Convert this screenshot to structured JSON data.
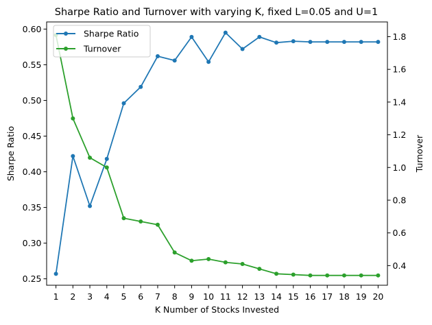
{
  "chart_data": {
    "type": "line",
    "title": "Sharpe Ratio and Turnover with varying K, fixed L=0.05 and U=1",
    "xlabel": "K Number of Stocks Invested",
    "ylabel": "Sharpe Ratio",
    "y2label": "Turnover",
    "x": [
      1,
      2,
      3,
      4,
      5,
      6,
      7,
      8,
      9,
      10,
      11,
      12,
      13,
      14,
      15,
      16,
      17,
      18,
      19,
      20
    ],
    "xlim": [
      0.45,
      20.55
    ],
    "ylim": [
      0.241,
      0.61
    ],
    "y2lim": [
      0.28,
      1.89
    ],
    "yticks": [
      "0.25",
      "0.30",
      "0.35",
      "0.40",
      "0.45",
      "0.50",
      "0.55",
      "0.60"
    ],
    "y2ticks": [
      "0.4",
      "0.6",
      "0.8",
      "1.0",
      "1.2",
      "1.4",
      "1.6",
      "1.8"
    ],
    "grid": false,
    "legend_position": "top-left",
    "series": [
      {
        "name": "Sharpe Ratio",
        "axis": "left",
        "color": "#1f77b4",
        "values": [
          0.257,
          0.422,
          0.352,
          0.418,
          0.496,
          0.519,
          0.562,
          0.556,
          0.589,
          0.554,
          0.595,
          0.572,
          0.589,
          0.581,
          0.583,
          0.582,
          0.582,
          0.582,
          0.582,
          0.582
        ]
      },
      {
        "name": "Turnover",
        "axis": "right",
        "color": "#2ca02c",
        "values": [
          1.81,
          1.3,
          1.06,
          1.0,
          0.69,
          0.67,
          0.65,
          0.48,
          0.43,
          0.44,
          0.42,
          0.41,
          0.38,
          0.35,
          0.345,
          0.34,
          0.34,
          0.34,
          0.34,
          0.34
        ]
      }
    ]
  }
}
